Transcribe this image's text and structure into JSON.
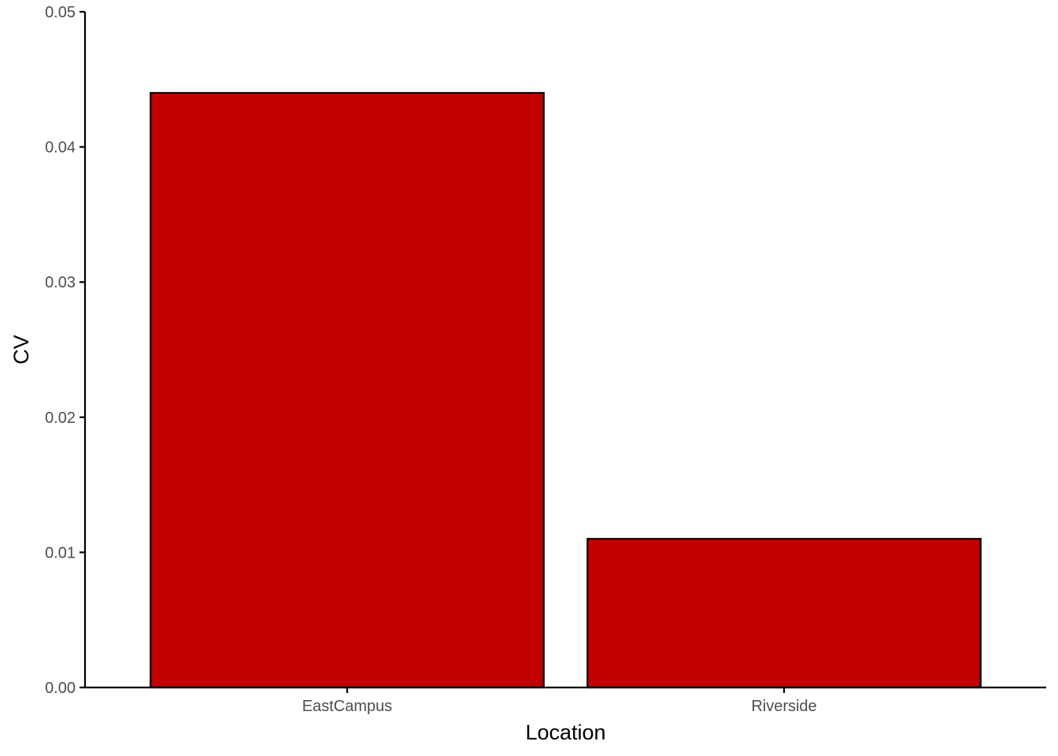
{
  "chart_data": {
    "type": "bar",
    "title": "",
    "xlabel": "Location",
    "ylabel": "CV",
    "categories": [
      "EastCampus",
      "Riverside"
    ],
    "values": [
      0.044,
      0.011
    ],
    "ylim": [
      0,
      0.05
    ],
    "yticks": [
      "0.00",
      "0.01",
      "0.02",
      "0.03",
      "0.04",
      "0.05"
    ],
    "grid": false,
    "legend": "none",
    "colors": {
      "bar_fill": "#C20000",
      "bar_outline": "#000000",
      "axis": "#000000",
      "tick_text": "#4D4D4D"
    }
  }
}
